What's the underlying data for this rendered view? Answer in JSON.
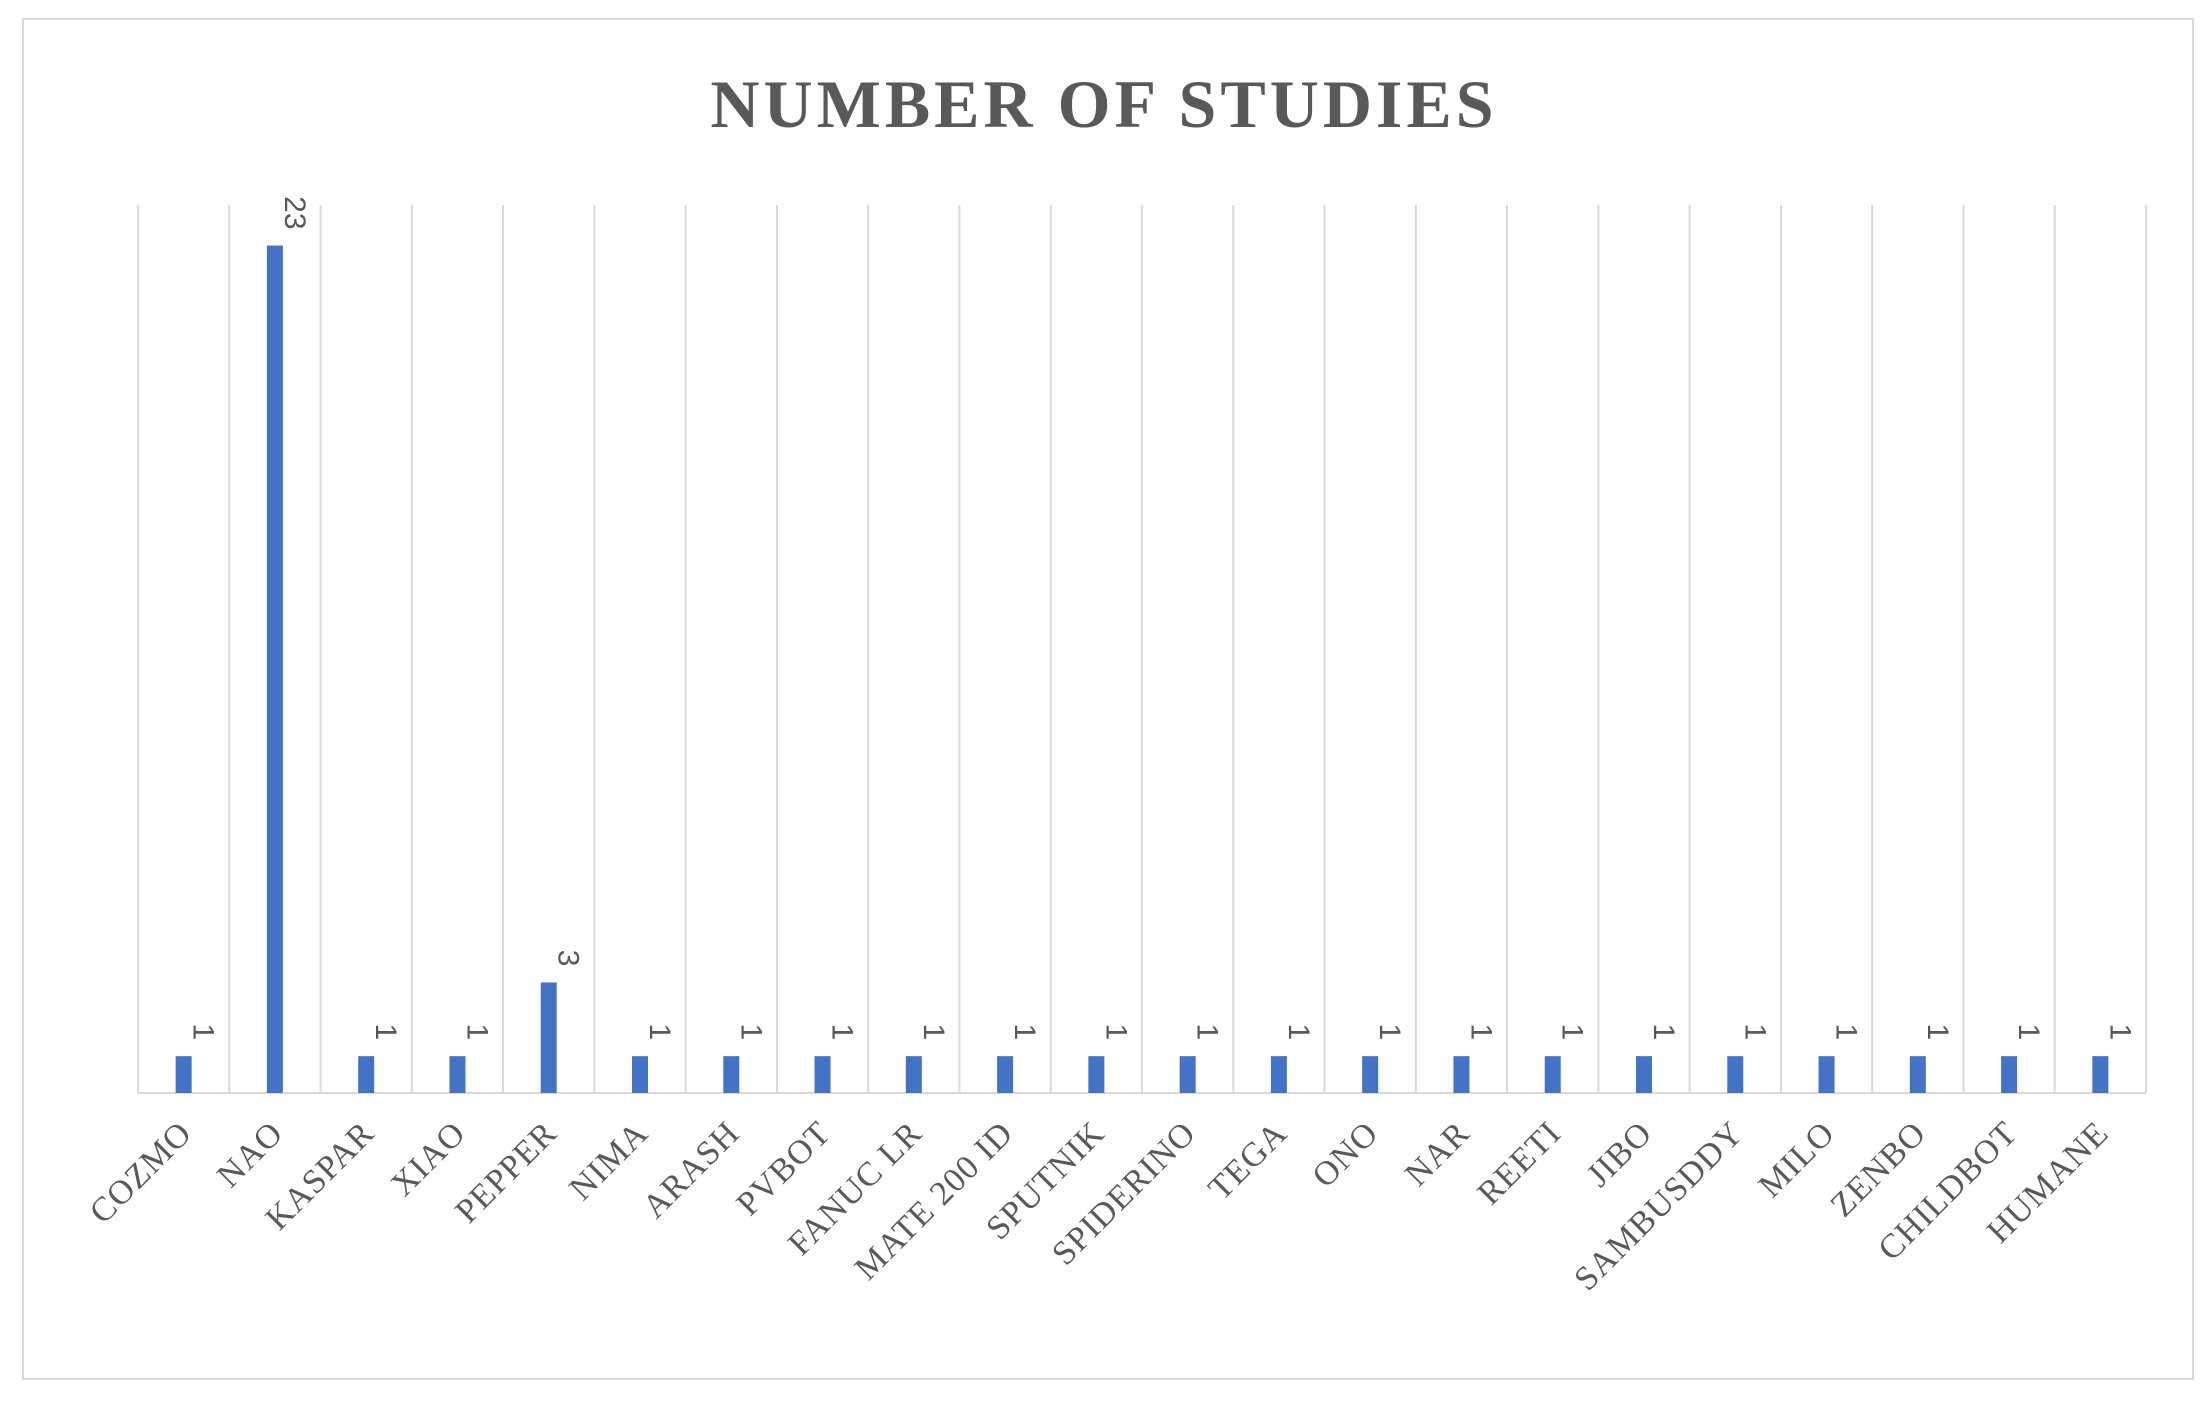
{
  "chart_data": {
    "type": "bar",
    "title": "NUMBER OF STUDIES",
    "xlabel": "",
    "ylabel": "",
    "categories": [
      "COZMO",
      "NAO",
      "KASPAR",
      "XIAO",
      "PEPPER",
      "NIMA",
      "ARASH",
      "PVBOT",
      "FANUC LR",
      "MATE 200 ID",
      "SPUTNIK",
      "SPIDERINO",
      "TEGA",
      "ONO",
      "NAR",
      "REETI",
      "JIBO",
      "SAMBUSDDY",
      "MILO",
      "ZENBO",
      "CHILDBOT",
      "HUMANE"
    ],
    "values": [
      1,
      23,
      1,
      1,
      3,
      1,
      1,
      1,
      1,
      1,
      1,
      1,
      1,
      1,
      1,
      1,
      1,
      1,
      1,
      1,
      1,
      1
    ],
    "data_labels": [
      "1",
      "23",
      "1",
      "1",
      "3",
      "1",
      "1",
      "1",
      "1",
      "1",
      "1",
      "1",
      "1",
      "1",
      "1",
      "1",
      "1",
      "1",
      "1",
      "1",
      "1",
      "1"
    ],
    "ylim": [
      0,
      25
    ],
    "grid": "vertical",
    "legend": "none",
    "colors": {
      "bar": "#4472c4",
      "grid": "#d9d9d9",
      "text": "#595959"
    }
  }
}
